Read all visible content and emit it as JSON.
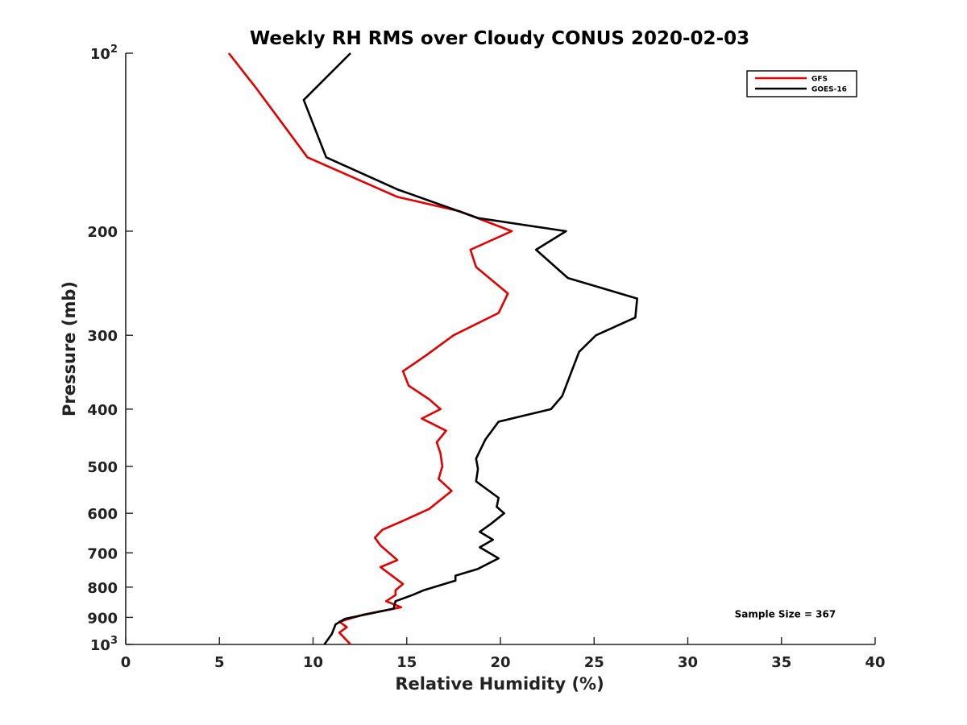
{
  "chart_data": {
    "type": "line",
    "title": "Weekly RH RMS over Cloudy CONUS 2020-02-03",
    "xlabel": "Relative Humidity (%)",
    "ylabel": "Pressure (mb)",
    "xlim": [
      0,
      40
    ],
    "ylim": [
      100,
      1000
    ],
    "y_scale": "log",
    "y_inverted": true,
    "grid": false,
    "legend_position": "top-right",
    "x_ticks": [
      "0",
      "5",
      "10",
      "15",
      "20",
      "25",
      "30",
      "35",
      "40"
    ],
    "y_ticks": [
      {
        "value": 100,
        "base": "10",
        "exp": "2"
      },
      {
        "value": 200,
        "label": "200"
      },
      {
        "value": 300,
        "label": "300"
      },
      {
        "value": 400,
        "label": "400"
      },
      {
        "value": 500,
        "label": "500"
      },
      {
        "value": 600,
        "label": "600"
      },
      {
        "value": 700,
        "label": "700"
      },
      {
        "value": 800,
        "label": "800"
      },
      {
        "value": 900,
        "label": "900"
      },
      {
        "value": 1000,
        "base": "10",
        "exp": "3"
      }
    ],
    "series": [
      {
        "name": "GFS",
        "color": "#e00000",
        "points": [
          [
            5.5,
            100
          ],
          [
            7.0,
            115
          ],
          [
            9.7,
            150
          ],
          [
            14.5,
            175
          ],
          [
            17.8,
            185
          ],
          [
            20.6,
            200
          ],
          [
            18.4,
            215
          ],
          [
            18.7,
            230
          ],
          [
            20.4,
            255
          ],
          [
            19.9,
            275
          ],
          [
            17.5,
            300
          ],
          [
            16.0,
            325
          ],
          [
            14.8,
            345
          ],
          [
            15.1,
            365
          ],
          [
            16.2,
            385
          ],
          [
            16.8,
            400
          ],
          [
            15.8,
            415
          ],
          [
            17.1,
            435
          ],
          [
            16.6,
            455
          ],
          [
            16.8,
            475
          ],
          [
            16.9,
            500
          ],
          [
            16.7,
            525
          ],
          [
            17.4,
            550
          ],
          [
            16.2,
            590
          ],
          [
            14.7,
            620
          ],
          [
            13.7,
            640
          ],
          [
            13.3,
            660
          ],
          [
            13.6,
            680
          ],
          [
            14.5,
            720
          ],
          [
            13.6,
            740
          ],
          [
            14.8,
            790
          ],
          [
            14.4,
            810
          ],
          [
            14.4,
            825
          ],
          [
            13.9,
            845
          ],
          [
            14.7,
            865
          ],
          [
            12.7,
            890
          ],
          [
            11.4,
            915
          ],
          [
            11.8,
            935
          ],
          [
            11.4,
            955
          ],
          [
            12.0,
            1000
          ]
        ]
      },
      {
        "name": "GOES-16",
        "color": "#000000",
        "points": [
          [
            12.0,
            100
          ],
          [
            9.5,
            120
          ],
          [
            10.7,
            150
          ],
          [
            14.5,
            170
          ],
          [
            18.8,
            190
          ],
          [
            23.5,
            200
          ],
          [
            21.9,
            215
          ],
          [
            23.6,
            240
          ],
          [
            27.3,
            260
          ],
          [
            27.2,
            280
          ],
          [
            25.1,
            300
          ],
          [
            24.2,
            320
          ],
          [
            23.8,
            345
          ],
          [
            23.3,
            380
          ],
          [
            22.7,
            400
          ],
          [
            19.9,
            420
          ],
          [
            19.2,
            450
          ],
          [
            18.7,
            485
          ],
          [
            18.8,
            505
          ],
          [
            18.7,
            530
          ],
          [
            19.9,
            565
          ],
          [
            19.8,
            585
          ],
          [
            20.2,
            600
          ],
          [
            19.5,
            625
          ],
          [
            18.9,
            645
          ],
          [
            19.6,
            665
          ],
          [
            18.9,
            685
          ],
          [
            19.9,
            715
          ],
          [
            18.8,
            745
          ],
          [
            17.6,
            765
          ],
          [
            17.6,
            780
          ],
          [
            15.9,
            810
          ],
          [
            15.3,
            825
          ],
          [
            14.4,
            845
          ],
          [
            14.3,
            870
          ],
          [
            11.7,
            905
          ],
          [
            11.2,
            925
          ],
          [
            11.0,
            960
          ],
          [
            10.6,
            1000
          ]
        ]
      }
    ],
    "annotations": [
      {
        "text": "Sample Size = 367",
        "x": 32.5,
        "y": 900
      }
    ]
  }
}
